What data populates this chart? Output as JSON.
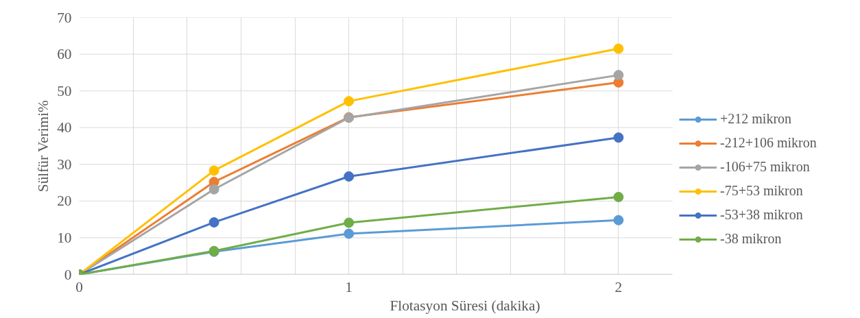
{
  "chart_data": {
    "type": "line",
    "xlabel": "Flotasyon Süresi (dakika)",
    "ylabel": "Sülfür Verimi%",
    "xlim": [
      0,
      2.2
    ],
    "ylim": [
      0,
      70
    ],
    "xticks": [
      0,
      {
        "value": 0.2,
        "label": null
      },
      {
        "value": 0.4,
        "label": null
      },
      {
        "value": 0.6,
        "label": null
      },
      {
        "value": 0.8,
        "label": null
      },
      1,
      {
        "value": 1.2,
        "label": null
      },
      {
        "value": 1.4,
        "label": null
      },
      {
        "value": 1.6,
        "label": null
      },
      {
        "value": 1.8,
        "label": null
      },
      2
    ],
    "yticks": [
      0,
      10,
      20,
      30,
      40,
      50,
      60,
      70
    ],
    "grid": true,
    "legend": "right",
    "marker": "circle",
    "line_style": "solid",
    "x": [
      0,
      0.5,
      1,
      2
    ],
    "series": [
      {
        "name": "+212 mikron",
        "color": "#5b9bd5",
        "values": [
          0,
          6.2,
          11.1,
          14.8
        ]
      },
      {
        "name": "-212+106 mikron",
        "color": "#ed7d31",
        "values": [
          0,
          25.2,
          42.8,
          52.3
        ]
      },
      {
        "name": "-106+75 mikron",
        "color": "#a5a5a5",
        "values": [
          0,
          23.2,
          42.7,
          54.3
        ]
      },
      {
        "name": "-75+53 mikron",
        "color": "#ffc000",
        "values": [
          0,
          28.3,
          47.2,
          61.5
        ]
      },
      {
        "name": "-53+38 mikron",
        "color": "#4472c4",
        "values": [
          0,
          14.2,
          26.7,
          37.3
        ]
      },
      {
        "name": "-38 mikron",
        "color": "#70ad47",
        "values": [
          0,
          6.4,
          14.1,
          21.1
        ]
      }
    ]
  }
}
